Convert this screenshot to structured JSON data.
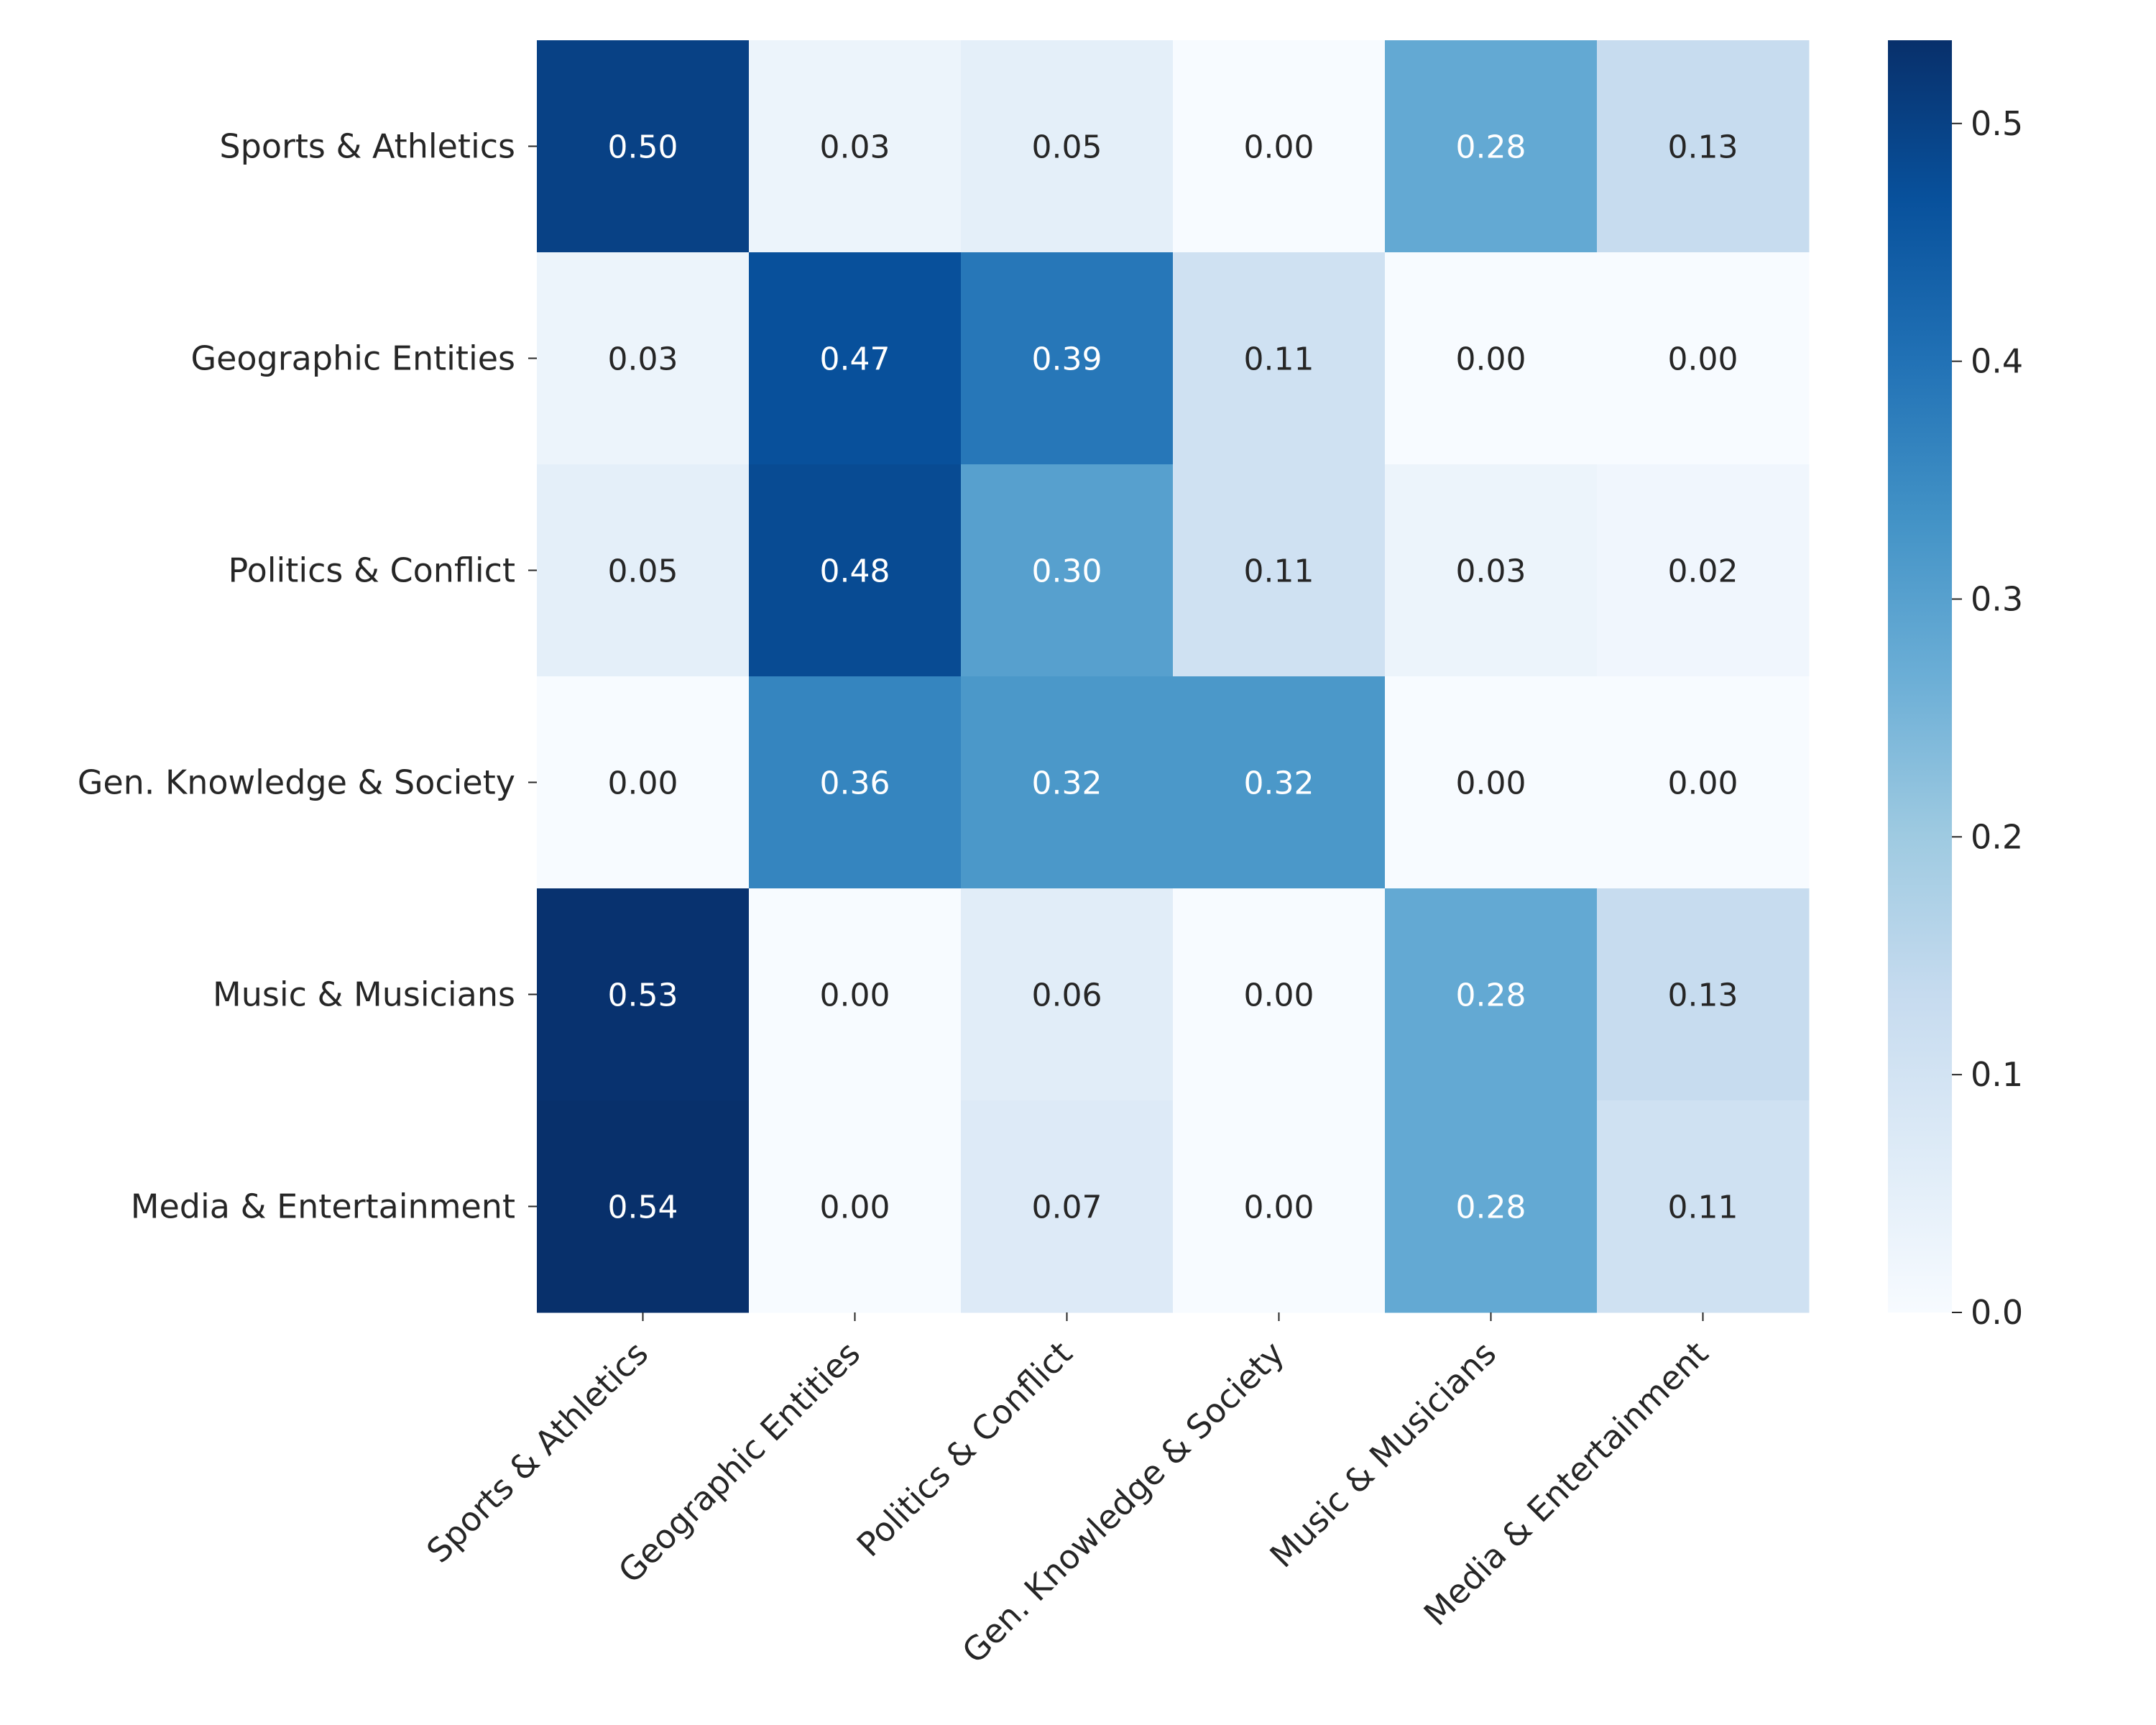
{
  "chart_data": {
    "type": "heatmap",
    "title": "",
    "xlabel": "",
    "ylabel": "",
    "rows": [
      "Sports & Athletics",
      "Geographic Entities",
      "Politics & Conflict",
      "Gen. Knowledge & Society",
      "Music & Musicians",
      "Media & Entertainment"
    ],
    "columns": [
      "Sports & Athletics",
      "Geographic Entities",
      "Politics & Conflict",
      "Gen. Knowledge & Society",
      "Music & Musicians",
      "Media & Entertainment"
    ],
    "values": [
      [
        0.5,
        0.03,
        0.05,
        0.0,
        0.28,
        0.13
      ],
      [
        0.03,
        0.47,
        0.39,
        0.11,
        0.0,
        0.0
      ],
      [
        0.05,
        0.48,
        0.3,
        0.11,
        0.03,
        0.02
      ],
      [
        0.0,
        0.36,
        0.32,
        0.32,
        0.0,
        0.0
      ],
      [
        0.53,
        0.0,
        0.06,
        0.0,
        0.28,
        0.13
      ],
      [
        0.54,
        0.0,
        0.07,
        0.0,
        0.28,
        0.11
      ]
    ],
    "value_format": "0.00",
    "colormap": "Blues",
    "colorbar": {
      "range": [
        0.0,
        0.535
      ],
      "ticks": [
        "0.0",
        "0.1",
        "0.2",
        "0.3",
        "0.4",
        "0.5"
      ],
      "tick_values": [
        0.0,
        0.1,
        0.2,
        0.3,
        0.4,
        0.5
      ]
    }
  }
}
